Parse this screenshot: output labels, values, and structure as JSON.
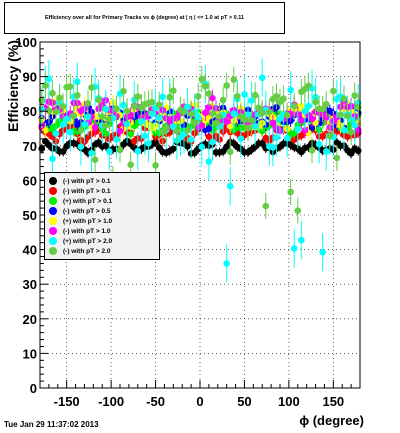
{
  "chart_data": {
    "type": "scatter",
    "title": "Efficiency over all for Primary Tracks vs ϕ (degree) at | η | <= 1.0 at pT > 0.11",
    "xlabel": "ϕ (degree)",
    "ylabel": "Efficiency (%)",
    "xlim": [
      -180,
      180
    ],
    "ylim": [
      0,
      100
    ],
    "x_ticks": [
      "-150",
      "-100",
      "-50",
      "0",
      "50",
      "100",
      "150"
    ],
    "y_ticks": [
      "0",
      "10",
      "20",
      "30",
      "40",
      "50",
      "60",
      "70",
      "80",
      "90",
      "100"
    ],
    "grid": true,
    "legend_position": "center-left",
    "series": [
      {
        "name": "(-) with pT > 0.1",
        "color": "#000000",
        "base": 69.5,
        "amp": 1.2,
        "jitter": 0.8
      },
      {
        "name": "(-) with pT > 0.1",
        "color": "#ff0000",
        "base": 73.5,
        "amp": 1.5,
        "jitter": 1.0
      },
      {
        "name": "(+) with pT > 0.1",
        "color": "#00ee00",
        "base": 76.5,
        "amp": 1.8,
        "jitter": 1.4
      },
      {
        "name": "(-) with pT > 0.5",
        "color": "#0000ff",
        "base": 78.0,
        "amp": 2.0,
        "jitter": 1.6
      },
      {
        "name": "(+) with pT > 1.0",
        "color": "#ffff00",
        "base": 78.5,
        "amp": 2.5,
        "jitter": 2.4
      },
      {
        "name": "(-) with pT > 1.0",
        "color": "#ff00ff",
        "base": 79.0,
        "amp": 2.5,
        "jitter": 2.6
      },
      {
        "name": "(+) with pT > 2.0",
        "color": "#00ffff",
        "base": 78.0,
        "amp": 3.0,
        "jitter": 9.0
      },
      {
        "name": "(-) with pT > 2.0",
        "color": "#66cc44",
        "base": 82.0,
        "amp": 3.0,
        "jitter": 5.5
      }
    ]
  },
  "legend_entries": [
    {
      "label": "(-) with pT > 0.1",
      "color": "#000000"
    },
    {
      "label": "(-) with pT > 0.1",
      "color": "#ff0000"
    },
    {
      "label": "(+) with pT > 0.1",
      "color": "#00ee00"
    },
    {
      "label": "(-) with pT > 0.5",
      "color": "#0000ff"
    },
    {
      "label": "(+) with pT > 1.0",
      "color": "#ffff00"
    },
    {
      "label": "(-) with pT > 1.0",
      "color": "#ff00ff"
    },
    {
      "label": "(+) with pT > 2.0",
      "color": "#00ffff"
    },
    {
      "label": "(-) with pT > 2.0",
      "color": "#66cc44"
    }
  ],
  "timestamp": "Tue Jan 29 11:37:02 2013"
}
